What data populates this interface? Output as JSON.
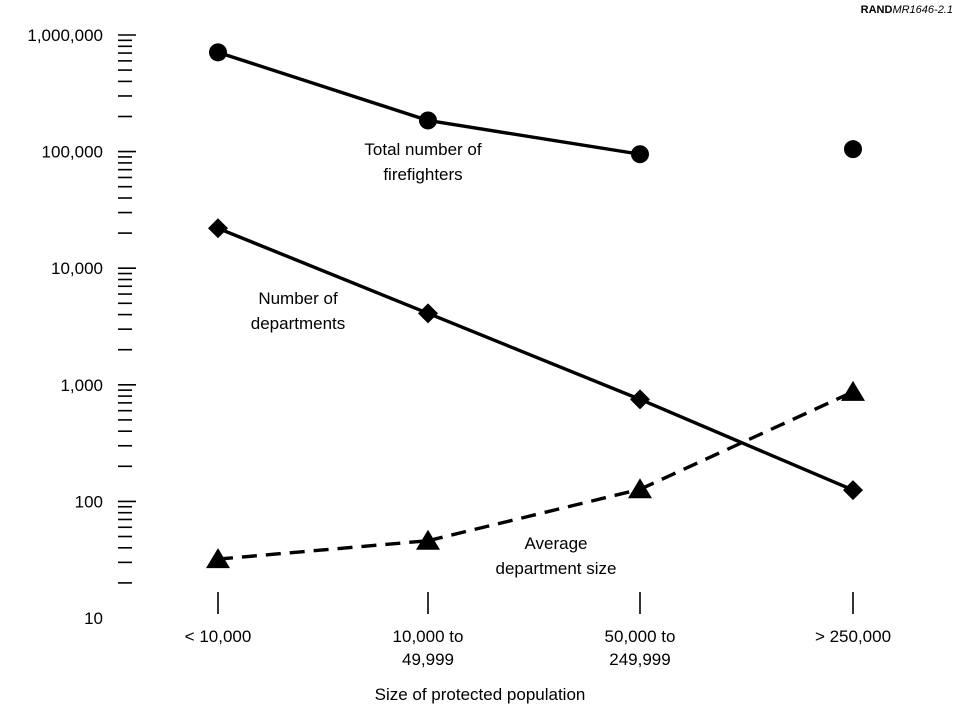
{
  "credit": {
    "prefix": "RAND",
    "code": "MR1646-2.1"
  },
  "chart_data": {
    "type": "line",
    "y_scale": "log",
    "ylim": [
      10,
      1000000
    ],
    "ytick_labels": [
      "10",
      "100",
      "1,000",
      "10,000",
      "100,000",
      "1,000,000"
    ],
    "ytick_values": [
      10,
      100,
      1000,
      10000,
      100000,
      1000000
    ],
    "categories": [
      [
        "< 10,000"
      ],
      [
        "10,000 to",
        "49,999"
      ],
      [
        "50,000 to",
        "249,999"
      ],
      [
        "> 250,000"
      ]
    ],
    "xlabel": "Size of protected population",
    "ylabel": "",
    "grid": false,
    "series": [
      {
        "key": "firefighters",
        "label_lines": [
          "Total number of",
          "firefighters"
        ],
        "values": [
          710000,
          185000,
          95000,
          105000
        ],
        "connected": [
          true,
          true,
          false
        ],
        "marker": "circle",
        "dash": false
      },
      {
        "key": "departments",
        "label_lines": [
          "Number of",
          "departments"
        ],
        "values": [
          22000,
          4100,
          750,
          125
        ],
        "connected": [
          true,
          true,
          true
        ],
        "marker": "diamond",
        "dash": false
      },
      {
        "key": "avg_size",
        "label_lines": [
          "Average",
          "department size"
        ],
        "values": [
          32,
          46,
          127,
          870
        ],
        "connected": [
          true,
          true,
          true
        ],
        "marker": "triangle",
        "dash": true
      }
    ]
  }
}
